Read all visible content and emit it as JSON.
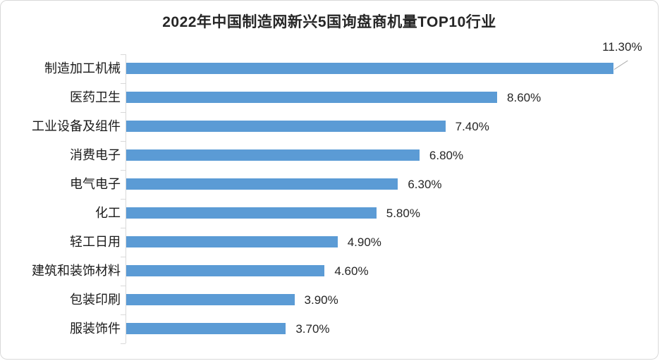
{
  "title": "2022年中国制造网新兴5国询盘商机量TOP10行业",
  "card": {
    "background": "#FFFFFF",
    "border_color": "#D9D9D9"
  },
  "chart_data": {
    "type": "bar",
    "orientation": "horizontal",
    "title": "2022年中国制造网新兴5国询盘商机量TOP10行业",
    "categories": [
      "制造加工机械",
      "医药卫生",
      "工业设备及组件",
      "消费电子",
      "电气电子",
      "化工",
      "轻工日用",
      "建筑和装饰材料",
      "包装印刷",
      "服装饰件"
    ],
    "values": [
      11.3,
      8.6,
      7.4,
      6.8,
      6.3,
      5.8,
      4.9,
      4.6,
      3.9,
      3.7
    ],
    "value_labels": [
      "11.30%",
      "8.60%",
      "7.40%",
      "6.80%",
      "6.30%",
      "5.80%",
      "4.90%",
      "4.60%",
      "3.90%",
      "3.70%"
    ],
    "xlabel": "",
    "ylabel": "",
    "xlim": [
      0,
      12
    ],
    "grid": "off",
    "legend": "none",
    "bar_color": "#5B9BD5",
    "axis_color": "#D9D9D9",
    "leader_line_color": "#A6A6A6",
    "text_color": "#262626",
    "callout": {
      "category_index": 0,
      "style": "leader-line",
      "note": "top bar's data label drawn above bar with diagonal gray leader line"
    }
  }
}
